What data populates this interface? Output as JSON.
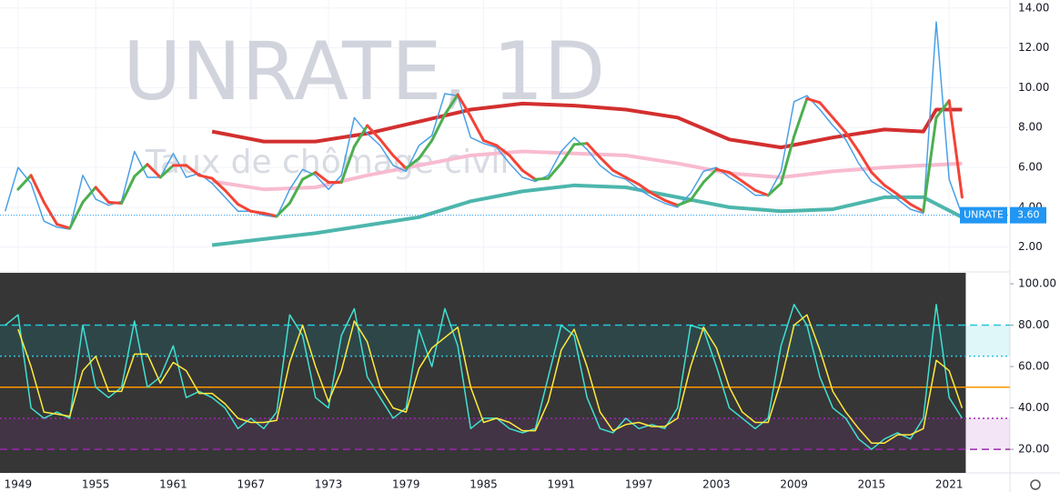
{
  "chart_data": [
    {
      "type": "line",
      "watermark": "UNRATE, 1D",
      "subtitle": "Taux de chômage civil",
      "x": [
        1948,
        1949,
        1950,
        1951,
        1952,
        1953,
        1954,
        1955,
        1956,
        1957,
        1958,
        1959,
        1960,
        1961,
        1962,
        1963,
        1964,
        1965,
        1966,
        1967,
        1968,
        1969,
        1970,
        1971,
        1972,
        1973,
        1974,
        1975,
        1976,
        1977,
        1978,
        1979,
        1980,
        1981,
        1982,
        1983,
        1984,
        1985,
        1986,
        1987,
        1988,
        1989,
        1990,
        1991,
        1992,
        1993,
        1994,
        1995,
        1996,
        1997,
        1998,
        1999,
        2000,
        2001,
        2002,
        2003,
        2004,
        2005,
        2006,
        2007,
        2008,
        2009,
        2010,
        2011,
        2012,
        2013,
        2014,
        2015,
        2016,
        2017,
        2018,
        2019,
        2020,
        2021,
        2022
      ],
      "xlim": [
        1947.6,
        2025.7
      ],
      "xticks": [
        1949,
        1955,
        1961,
        1967,
        1973,
        1979,
        1985,
        1991,
        1997,
        2003,
        2009,
        2015,
        2021
      ],
      "ylim": [
        0.8,
        14.4
      ],
      "yticks": [
        {
          "value": 2,
          "label": "2.00"
        },
        {
          "value": 4,
          "label": "4.00"
        },
        {
          "value": 6,
          "label": "6.00"
        },
        {
          "value": 8,
          "label": "8.00"
        },
        {
          "value": 10,
          "label": "10.00"
        },
        {
          "value": 12,
          "label": "12.00"
        },
        {
          "value": 14,
          "label": "14.00"
        }
      ],
      "grid": true,
      "last_name": "UNRATE",
      "last_value": 3.6,
      "last_value_label": "3.60",
      "last_color": "#2196f3",
      "series": [
        {
          "color": "#4aa0e6",
          "width": 1.5,
          "values": [
            3.8,
            6.0,
            5.2,
            3.3,
            3.0,
            2.9,
            5.6,
            4.4,
            4.1,
            4.3,
            6.8,
            5.5,
            5.5,
            6.7,
            5.5,
            5.7,
            5.2,
            4.5,
            3.8,
            3.8,
            3.6,
            3.5,
            4.9,
            5.9,
            5.6,
            4.9,
            5.6,
            8.5,
            7.7,
            7.1,
            6.1,
            5.8,
            7.1,
            7.6,
            9.7,
            9.6,
            7.5,
            7.2,
            7.0,
            6.2,
            5.5,
            5.3,
            5.6,
            6.8,
            7.5,
            6.9,
            6.1,
            5.6,
            5.4,
            4.9,
            4.5,
            4.2,
            4.0,
            4.7,
            5.8,
            6.0,
            5.5,
            5.1,
            4.6,
            4.6,
            5.8,
            9.3,
            9.6,
            8.9,
            8.1,
            7.4,
            6.2,
            5.3,
            4.9,
            4.4,
            3.9,
            3.7,
            13.3,
            5.4,
            3.6
          ]
        },
        {
          "color": "#f44336",
          "rising_color": "#4caf50",
          "width": 3,
          "values": [
            null,
            4.9,
            5.6,
            4.25,
            3.15,
            2.95,
            4.25,
            5.0,
            4.25,
            4.2,
            5.55,
            6.15,
            5.5,
            6.1,
            6.1,
            5.6,
            5.45,
            4.85,
            4.15,
            3.8,
            3.7,
            3.55,
            4.2,
            5.4,
            5.75,
            5.25,
            5.25,
            7.05,
            8.1,
            7.4,
            6.6,
            5.95,
            6.45,
            7.35,
            8.65,
            9.65,
            8.55,
            7.35,
            7.1,
            6.6,
            5.85,
            5.4,
            5.45,
            6.2,
            7.15,
            7.2,
            6.5,
            5.85,
            5.5,
            5.15,
            4.7,
            4.35,
            4.1,
            4.35,
            5.25,
            5.9,
            5.75,
            5.3,
            4.85,
            4.6,
            5.2,
            7.55,
            9.45,
            9.25,
            8.5,
            7.75,
            6.8,
            5.75,
            5.1,
            4.65,
            4.15,
            3.8,
            8.5,
            9.35,
            4.5
          ]
        },
        {
          "color": "#d32f2f",
          "width": 4,
          "x": [
            1964,
            1968,
            1972,
            1976,
            1980,
            1984,
            1988,
            1992,
            1996,
            2000,
            2004,
            2008,
            2012,
            2016,
            2019,
            2020,
            2022
          ],
          "values": [
            7.8,
            7.3,
            7.3,
            7.7,
            8.3,
            8.9,
            9.2,
            9.1,
            8.9,
            8.5,
            7.4,
            7.0,
            7.5,
            7.9,
            7.8,
            8.9,
            8.9
          ]
        },
        {
          "color": "#f8bbd0",
          "width": 4,
          "x": [
            1964,
            1968,
            1972,
            1976,
            1980,
            1984,
            1988,
            1992,
            1996,
            2000,
            2004,
            2008,
            2012,
            2016,
            2019,
            2022
          ],
          "values": [
            5.3,
            4.9,
            5.0,
            5.6,
            6.1,
            6.6,
            6.8,
            6.7,
            6.6,
            6.2,
            5.7,
            5.5,
            5.8,
            6.0,
            6.1,
            6.2
          ]
        },
        {
          "color": "#4db6ac",
          "width": 4,
          "x": [
            1964,
            1968,
            1972,
            1976,
            1980,
            1984,
            1988,
            1992,
            1996,
            2000,
            2004,
            2008,
            2012,
            2016,
            2019,
            2022
          ],
          "values": [
            2.1,
            2.4,
            2.7,
            3.1,
            3.5,
            4.3,
            4.8,
            5.1,
            5.0,
            4.5,
            4.0,
            3.8,
            3.9,
            4.5,
            4.5,
            3.5
          ]
        }
      ]
    },
    {
      "type": "oscillator",
      "ylim": [
        8.6,
        105.3
      ],
      "yticks": [
        {
          "value": 20,
          "label": "20.00"
        },
        {
          "value": 40,
          "label": "40.00"
        },
        {
          "value": 60,
          "label": "60.00"
        },
        {
          "value": 80,
          "label": "80.00"
        },
        {
          "value": 100,
          "label": "100.00"
        }
      ],
      "bands": [
        {
          "from": 65,
          "to": 80,
          "color": "#00bcd4"
        },
        {
          "from": 20,
          "to": 35,
          "color": "#9c27b0"
        }
      ],
      "levels": [
        {
          "value": 80,
          "color": "#26c6da",
          "dash": "8,5"
        },
        {
          "value": 65,
          "color": "#26c6da",
          "dash": "2,3"
        },
        {
          "value": 50,
          "color": "#ff9800",
          "dash": "none"
        },
        {
          "value": 35,
          "color": "#9c27b0",
          "dash": "2,3"
        },
        {
          "value": 20,
          "color": "#9c27b0",
          "dash": "8,5"
        }
      ],
      "series": [
        {
          "color": "#40e0d0",
          "width": 1.5,
          "values": [
            80,
            85,
            40,
            35,
            38,
            35,
            80,
            50,
            45,
            50,
            82,
            50,
            55,
            70,
            45,
            48,
            45,
            40,
            30,
            35,
            30,
            38,
            85,
            75,
            45,
            40,
            75,
            88,
            55,
            45,
            35,
            40,
            78,
            60,
            88,
            70,
            30,
            35,
            35,
            30,
            28,
            30,
            55,
            80,
            75,
            45,
            30,
            28,
            35,
            30,
            32,
            30,
            40,
            80,
            78,
            60,
            40,
            35,
            30,
            35,
            70,
            90,
            80,
            55,
            40,
            35,
            25,
            20,
            25,
            28,
            25,
            35,
            90,
            45,
            35
          ]
        },
        {
          "color": "#ffeb3b",
          "width": 1.5,
          "values": [
            null,
            78,
            60,
            38,
            37,
            36,
            58,
            65,
            48,
            48,
            66,
            66,
            52,
            62,
            58,
            47,
            47,
            42,
            35,
            33,
            33,
            34,
            62,
            80,
            60,
            43,
            58,
            82,
            72,
            50,
            40,
            38,
            59,
            69,
            74,
            79,
            50,
            33,
            35,
            33,
            29,
            29,
            43,
            68,
            78,
            60,
            38,
            29,
            32,
            33,
            31,
            31,
            35,
            60,
            79,
            69,
            50,
            38,
            33,
            33,
            53,
            80,
            85,
            68,
            48,
            38,
            30,
            23,
            23,
            27,
            27,
            30,
            63,
            58,
            40
          ]
        }
      ]
    }
  ]
}
